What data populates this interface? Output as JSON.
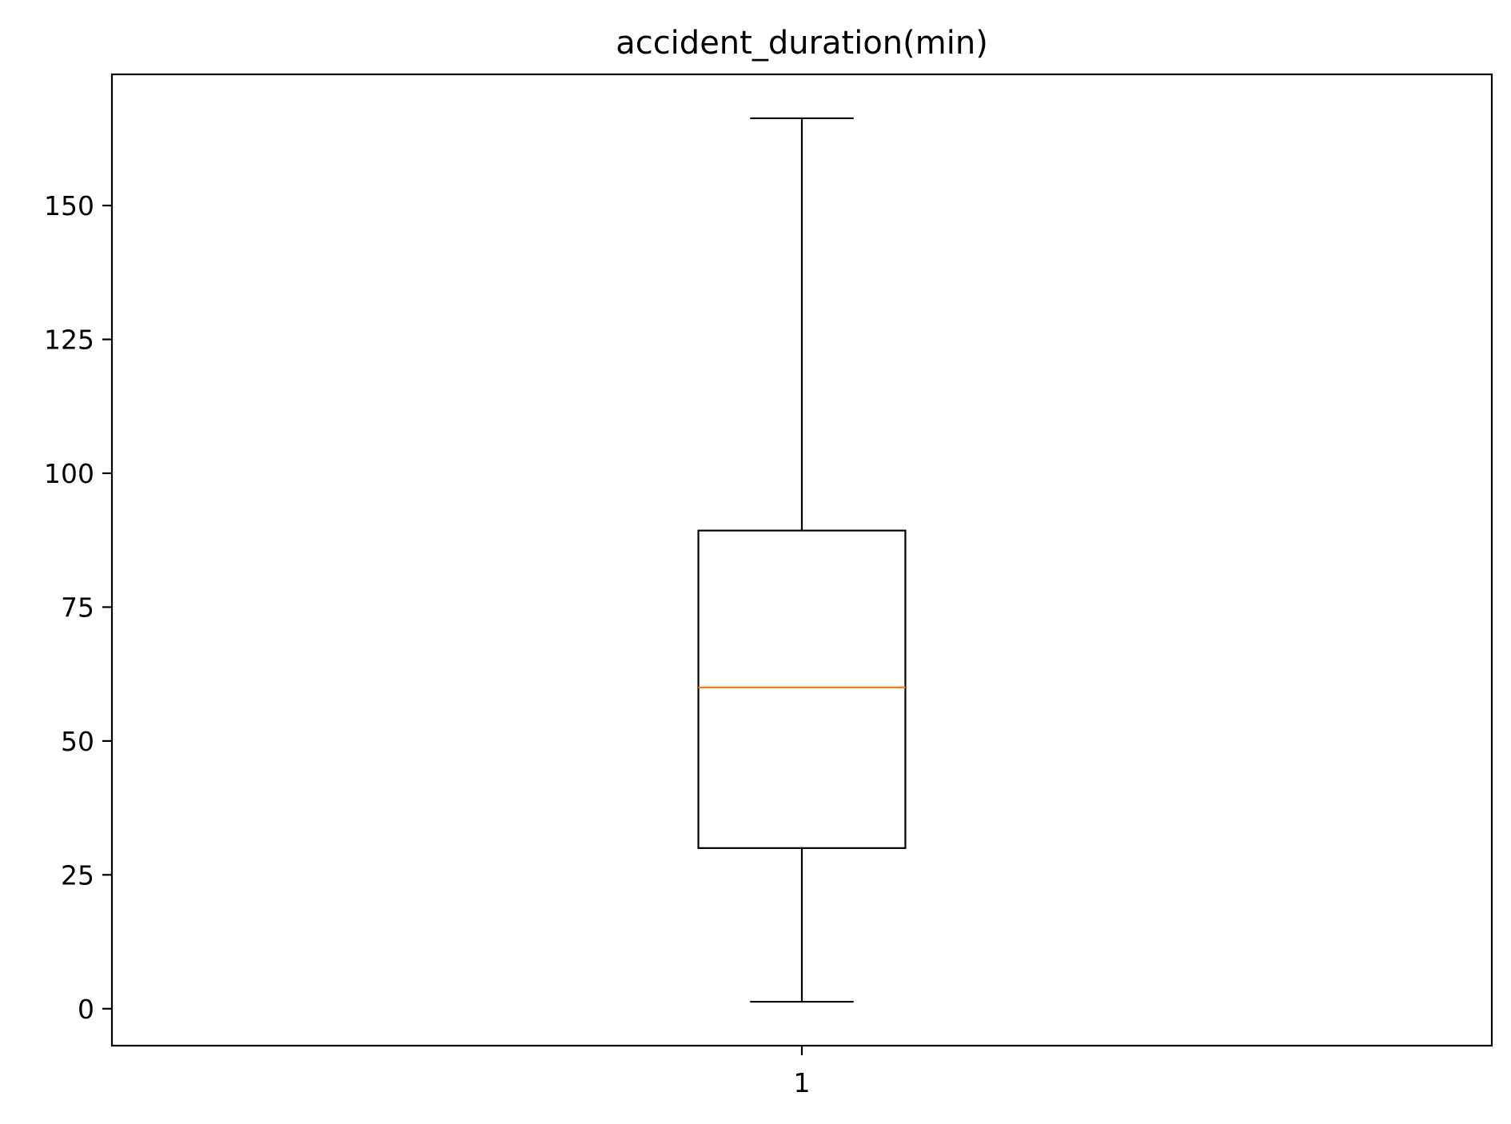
{
  "chart_data": {
    "type": "box",
    "title": "accident_duration(min)",
    "xlabel": "",
    "ylabel": "",
    "categories": [
      "1"
    ],
    "boxes": [
      {
        "category": "1",
        "whisker_low": 1.3,
        "q1": 30,
        "median": 60,
        "q3": 89.3,
        "whisker_high": 166.3
      }
    ],
    "ylim": [
      -6.9,
      174.5
    ],
    "yticks": [
      0,
      25,
      50,
      75,
      100,
      125,
      150
    ],
    "grid": false,
    "colors": {
      "box": "#000000",
      "median": "#ff7f0e",
      "axes": "#000000"
    }
  }
}
